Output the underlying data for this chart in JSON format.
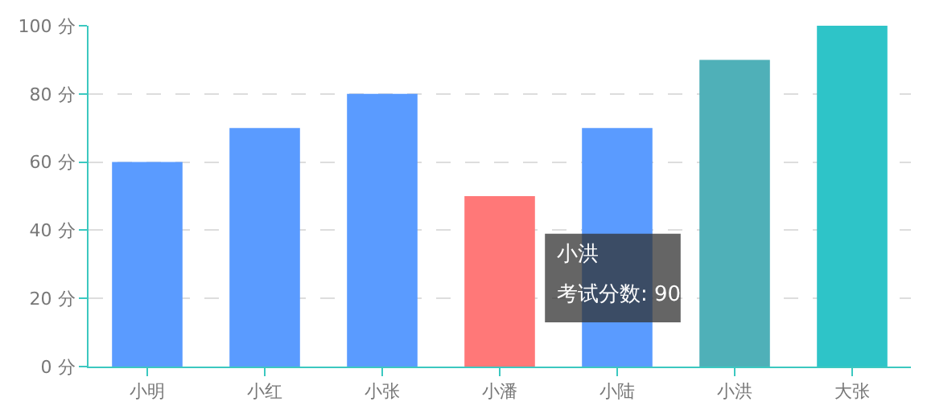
{
  "chart_data": {
    "type": "bar",
    "categories": [
      "小明",
      "小红",
      "小张",
      "小潘",
      "小陆",
      "小洪",
      "大张"
    ],
    "values": [
      60,
      70,
      80,
      50,
      70,
      90,
      100
    ],
    "colors": [
      "#5a9bff",
      "#5a9bff",
      "#5a9bff",
      "#ff7878",
      "#5a9bff",
      "#4fb0b8",
      "#2ec4c8"
    ],
    "ylim": [
      0,
      100
    ],
    "yticks": [
      {
        "value": 0,
        "label": "0 分"
      },
      {
        "value": 20,
        "label": "20 分"
      },
      {
        "value": 40,
        "label": "40 分"
      },
      {
        "value": 60,
        "label": "60 分"
      },
      {
        "value": 80,
        "label": "80 分"
      },
      {
        "value": 100,
        "label": "100 分"
      }
    ],
    "grid": "y",
    "annotations": [
      "小洪",
      "考试分数: 90"
    ]
  }
}
